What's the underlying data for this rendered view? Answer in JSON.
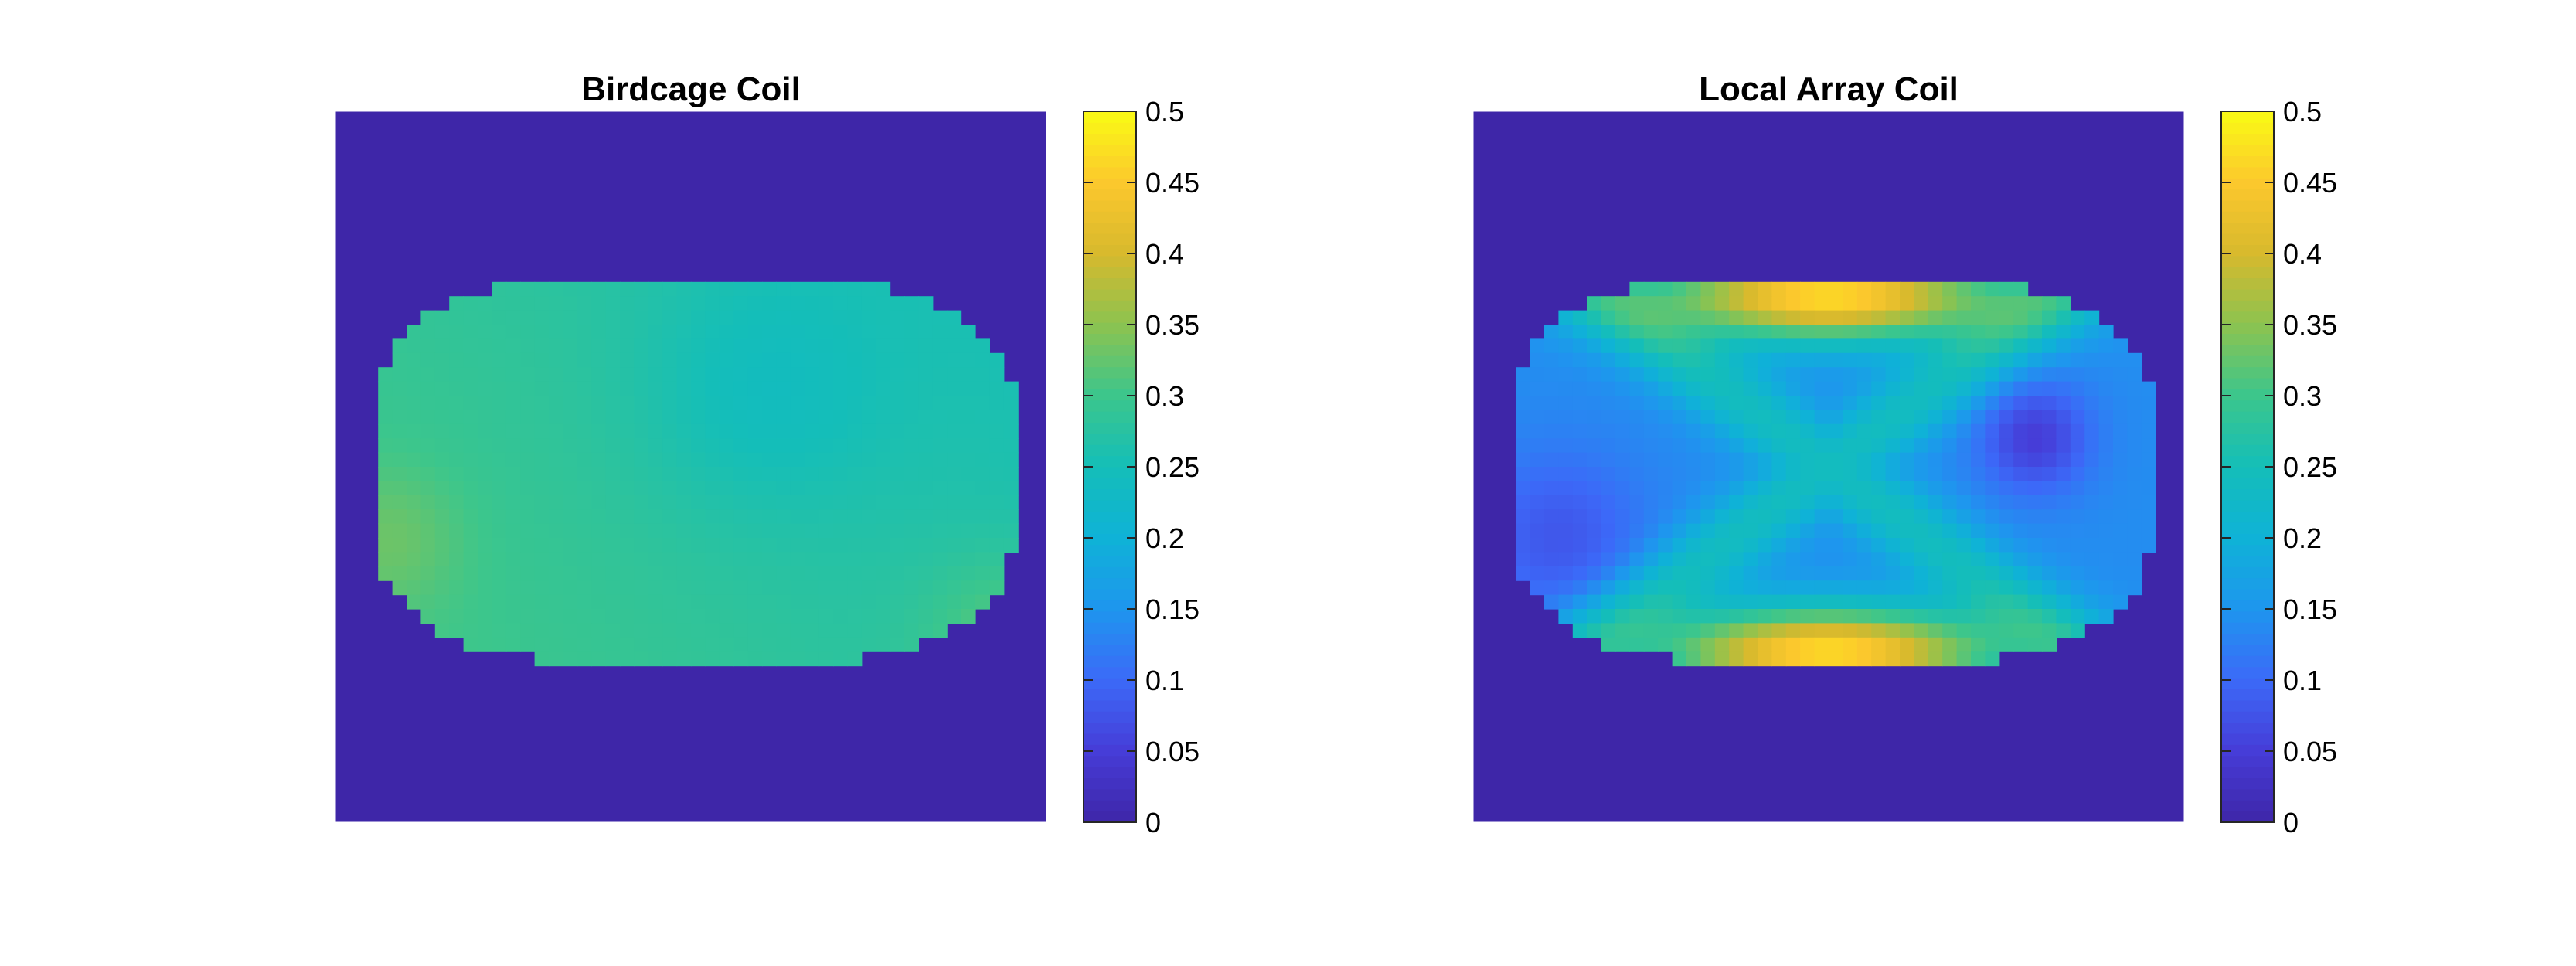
{
  "chart_data": [
    {
      "type": "heatmap",
      "title": "Birdcage Coil",
      "xlabel": "",
      "ylabel": "",
      "colormap": "parula",
      "clim": [
        0,
        0.5
      ],
      "colorbar_ticks": [
        0,
        0.05,
        0.1,
        0.15,
        0.2,
        0.25,
        0.3,
        0.35,
        0.4,
        0.45,
        0.5
      ],
      "colorbar_tick_labels": [
        "0",
        "0.05",
        "0.1",
        "0.15",
        "0.2",
        "0.25",
        "0.3",
        "0.35",
        "0.4",
        "0.45",
        "0.5"
      ],
      "background_value": 0,
      "matrix_size": [
        50,
        50
      ],
      "region_value_range": [
        0.22,
        0.36
      ],
      "typical_value": 0.28
    },
    {
      "type": "heatmap",
      "title": "Local Array Coil",
      "xlabel": "",
      "ylabel": "",
      "colormap": "parula",
      "clim": [
        0,
        0.5
      ],
      "colorbar_ticks": [
        0,
        0.05,
        0.1,
        0.15,
        0.2,
        0.25,
        0.3,
        0.35,
        0.4,
        0.45,
        0.5
      ],
      "colorbar_tick_labels": [
        "0",
        "0.05",
        "0.1",
        "0.15",
        "0.2",
        "0.25",
        "0.3",
        "0.35",
        "0.4",
        "0.45",
        "0.5"
      ],
      "background_value": 0,
      "matrix_size": [
        50,
        50
      ],
      "region_value_range": [
        0.02,
        0.5
      ],
      "typical_value": 0.2
    }
  ]
}
